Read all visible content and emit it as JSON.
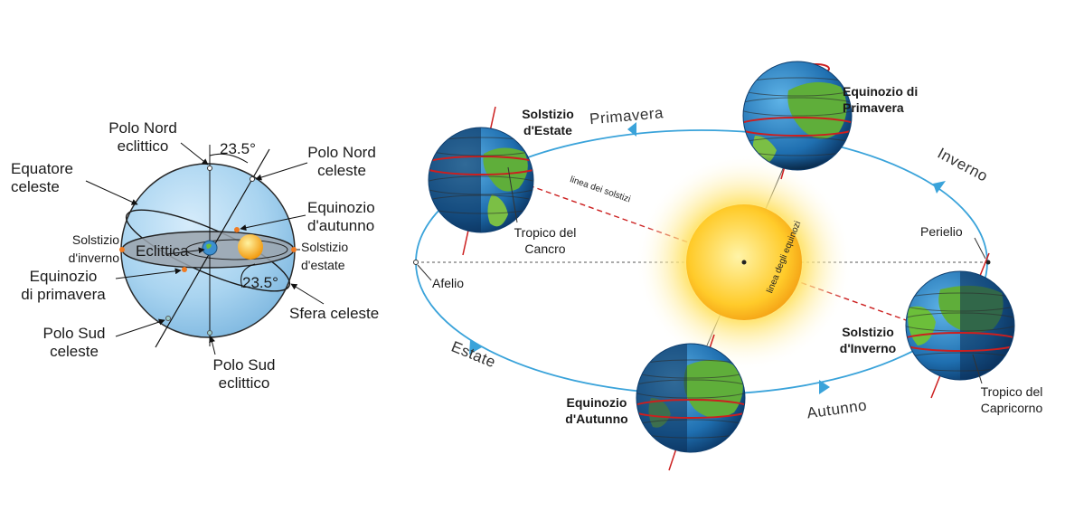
{
  "left_diagram": {
    "polo_nord_eclittico": [
      "Polo Nord",
      "eclittico"
    ],
    "angle_top": "23.5°",
    "polo_nord_celeste": [
      "Polo Nord",
      "celeste"
    ],
    "equatore_celeste": [
      "Equatore",
      "celeste"
    ],
    "equinozio_autunno": [
      "Equinozio",
      "d'autunno"
    ],
    "solstizio_inverno": [
      "Solstizio",
      "d'inverno"
    ],
    "eclittica": "Eclittica",
    "solstizio_estate": [
      "Solstizio",
      "d'estate"
    ],
    "equinozio_primavera": [
      "Equinozio",
      "di primavera"
    ],
    "angle_bottom": "23.5°",
    "sfera_celeste": "Sfera celeste",
    "polo_sud_celeste": [
      "Polo Sud",
      "celeste"
    ],
    "polo_sud_eclittico": [
      "Polo Sud",
      "eclittico"
    ]
  },
  "right_diagram": {
    "seasons": {
      "primavera": "Primavera",
      "inverno": "Inverno",
      "estate": "Estate",
      "autunno": "Autunno"
    },
    "positions": {
      "solstizio_estate": [
        "Solstizio",
        "d'Estate"
      ],
      "equinozio_primavera": [
        "Equinozio di",
        "Primavera"
      ],
      "solstizio_inverno": [
        "Solstizio",
        "d'Inverno"
      ],
      "equinozio_autunno": [
        "Equinozio",
        "d'Autunno"
      ]
    },
    "lines": {
      "solstizi": "linea dei solstizi",
      "equinozi": "linea degli equinozi"
    },
    "tropico_cancro": [
      "Tropico del",
      "Cancro"
    ],
    "tropico_capricorno": [
      "Tropico del",
      "Capricorno"
    ],
    "perielio": "Perielio",
    "afelio": "Afelio"
  },
  "colors": {
    "orbit": "#3aa3da",
    "axis_red": "#cc1f1f",
    "sphere": "#a9d4f0",
    "sun": "#f7b515"
  }
}
